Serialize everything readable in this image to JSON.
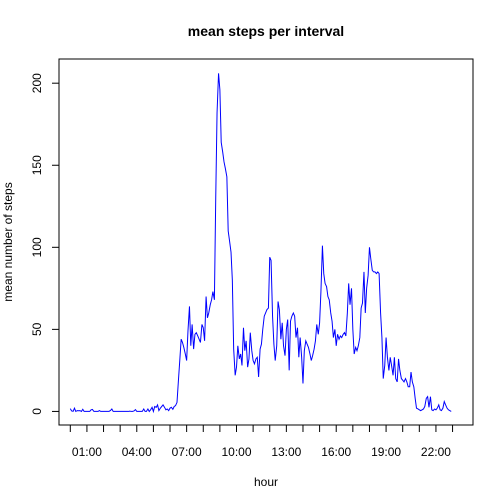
{
  "chart_data": {
    "type": "line",
    "title": "mean steps per interval",
    "xlabel": "hour",
    "ylabel": "mean number of steps",
    "xlim": [
      -0.68,
      24.23
    ],
    "ylim": [
      -8.27,
      214.74
    ],
    "grid": false,
    "x_major_ticks": [
      1,
      4,
      7,
      10,
      13,
      16,
      19,
      22
    ],
    "x_major_tick_labels": [
      "01:00",
      "04:00",
      "07:00",
      "10:00",
      "13:00",
      "16:00",
      "19:00",
      "22:00"
    ],
    "x_minor_ticks": [
      0,
      2,
      3,
      5,
      6,
      8,
      9,
      11,
      12,
      14,
      15,
      17,
      18,
      20,
      21,
      23
    ],
    "y_ticks": [
      0,
      50,
      100,
      150,
      200
    ],
    "y_tick_labels": [
      "0",
      "50",
      "100",
      "150",
      "200"
    ],
    "series": [
      {
        "color": "#0000ff",
        "points": [
          [
            0.0,
            1.7
          ],
          [
            0.08,
            0.3
          ],
          [
            0.17,
            0.1
          ],
          [
            0.25,
            2.0
          ],
          [
            0.33,
            0.0
          ],
          [
            0.42,
            0.5
          ],
          [
            0.5,
            0.4
          ],
          [
            0.58,
            0.5
          ],
          [
            0.67,
            0.0
          ],
          [
            0.75,
            1.3
          ],
          [
            0.83,
            0.0
          ],
          [
            0.92,
            0.0
          ],
          [
            1.0,
            0.0
          ],
          [
            1.08,
            0.0
          ],
          [
            1.17,
            0.0
          ],
          [
            1.25,
            1.0
          ],
          [
            1.33,
            1.2
          ],
          [
            1.42,
            0.0
          ],
          [
            1.5,
            0.0
          ],
          [
            1.58,
            0.0
          ],
          [
            1.67,
            0.0
          ],
          [
            1.75,
            0.5
          ],
          [
            1.83,
            0.0
          ],
          [
            1.92,
            0.0
          ],
          [
            2.0,
            0.0
          ],
          [
            2.08,
            0.0
          ],
          [
            2.17,
            0.0
          ],
          [
            2.25,
            0.0
          ],
          [
            2.33,
            0.0
          ],
          [
            2.42,
            0.6
          ],
          [
            2.5,
            1.5
          ],
          [
            2.58,
            0.0
          ],
          [
            2.67,
            0.0
          ],
          [
            2.75,
            0.0
          ],
          [
            2.83,
            0.0
          ],
          [
            2.92,
            0.0
          ],
          [
            3.0,
            0.0
          ],
          [
            3.08,
            0.0
          ],
          [
            3.17,
            0.0
          ],
          [
            3.25,
            0.0
          ],
          [
            3.33,
            0.0
          ],
          [
            3.42,
            0.0
          ],
          [
            3.5,
            0.0
          ],
          [
            3.58,
            0.2
          ],
          [
            3.67,
            0.0
          ],
          [
            3.75,
            0.0
          ],
          [
            3.83,
            0.3
          ],
          [
            3.92,
            1.1
          ],
          [
            4.0,
            0.0
          ],
          [
            4.08,
            0.0
          ],
          [
            4.17,
            0.0
          ],
          [
            4.25,
            0.0
          ],
          [
            4.33,
            0.0
          ],
          [
            4.42,
            1.5
          ],
          [
            4.5,
            0.0
          ],
          [
            4.58,
            0.0
          ],
          [
            4.67,
            1.5
          ],
          [
            4.75,
            0.0
          ],
          [
            4.83,
            1.0
          ],
          [
            4.92,
            2.5
          ],
          [
            5.0,
            0.0
          ],
          [
            5.08,
            3.0
          ],
          [
            5.17,
            2.5
          ],
          [
            5.25,
            4.0
          ],
          [
            5.33,
            0.5
          ],
          [
            5.42,
            2.0
          ],
          [
            5.5,
            3.0
          ],
          [
            5.58,
            4.0
          ],
          [
            5.67,
            2.5
          ],
          [
            5.75,
            1.0
          ],
          [
            5.83,
            1.5
          ],
          [
            5.92,
            0.5
          ],
          [
            6.0,
            2.0
          ],
          [
            6.08,
            2.5
          ],
          [
            6.17,
            1.3
          ],
          [
            6.25,
            3.0
          ],
          [
            6.33,
            3.5
          ],
          [
            6.42,
            5.5
          ],
          [
            6.5,
            18.0
          ],
          [
            6.58,
            30.0
          ],
          [
            6.67,
            44.0
          ],
          [
            6.75,
            42.0
          ],
          [
            6.83,
            39.0
          ],
          [
            6.92,
            35.0
          ],
          [
            7.0,
            31.0
          ],
          [
            7.08,
            49.0
          ],
          [
            7.17,
            64.0
          ],
          [
            7.25,
            40.0
          ],
          [
            7.33,
            53.0
          ],
          [
            7.42,
            38.0
          ],
          [
            7.5,
            47.0
          ],
          [
            7.58,
            48.0
          ],
          [
            7.67,
            46.0
          ],
          [
            7.75,
            44.0
          ],
          [
            7.83,
            42.0
          ],
          [
            7.92,
            53.0
          ],
          [
            8.0,
            51.0
          ],
          [
            8.08,
            43.0
          ],
          [
            8.17,
            70.0
          ],
          [
            8.25,
            57.0
          ],
          [
            8.33,
            60.0
          ],
          [
            8.42,
            65.0
          ],
          [
            8.5,
            68.0
          ],
          [
            8.58,
            73.0
          ],
          [
            8.67,
            68.0
          ],
          [
            8.75,
            130.0
          ],
          [
            8.83,
            182.0
          ],
          [
            8.92,
            206.0
          ],
          [
            9.0,
            196.0
          ],
          [
            9.08,
            164.0
          ],
          [
            9.17,
            158.0
          ],
          [
            9.25,
            152.0
          ],
          [
            9.33,
            148.0
          ],
          [
            9.42,
            143.0
          ],
          [
            9.5,
            110.0
          ],
          [
            9.58,
            104.0
          ],
          [
            9.67,
            97.0
          ],
          [
            9.75,
            80.0
          ],
          [
            9.83,
            38.0
          ],
          [
            9.92,
            22.0
          ],
          [
            10.0,
            27.0
          ],
          [
            10.08,
            40.0
          ],
          [
            10.17,
            32.0
          ],
          [
            10.25,
            35.0
          ],
          [
            10.33,
            28.0
          ],
          [
            10.42,
            51.0
          ],
          [
            10.5,
            37.0
          ],
          [
            10.58,
            43.0
          ],
          [
            10.67,
            27.0
          ],
          [
            10.75,
            32.0
          ],
          [
            10.83,
            48.0
          ],
          [
            10.92,
            37.0
          ],
          [
            11.0,
            31.0
          ],
          [
            11.08,
            29.0
          ],
          [
            11.17,
            32.0
          ],
          [
            11.25,
            33.0
          ],
          [
            11.33,
            21.0
          ],
          [
            11.42,
            38.0
          ],
          [
            11.5,
            41.0
          ],
          [
            11.58,
            50.0
          ],
          [
            11.67,
            58.0
          ],
          [
            11.75,
            60.0
          ],
          [
            11.83,
            62.0
          ],
          [
            11.92,
            63.0
          ],
          [
            12.0,
            94.0
          ],
          [
            12.08,
            92.0
          ],
          [
            12.17,
            58.0
          ],
          [
            12.25,
            41.0
          ],
          [
            12.33,
            31.0
          ],
          [
            12.42,
            40.0
          ],
          [
            12.5,
            67.0
          ],
          [
            12.58,
            62.0
          ],
          [
            12.67,
            44.0
          ],
          [
            12.75,
            54.0
          ],
          [
            12.83,
            40.0
          ],
          [
            12.92,
            34.0
          ],
          [
            13.0,
            50.0
          ],
          [
            13.08,
            56.0
          ],
          [
            13.17,
            25.0
          ],
          [
            13.25,
            55.0
          ],
          [
            13.33,
            58.0
          ],
          [
            13.42,
            60.0
          ],
          [
            13.5,
            58.0
          ],
          [
            13.58,
            45.0
          ],
          [
            13.67,
            51.0
          ],
          [
            13.75,
            33.0
          ],
          [
            13.83,
            45.0
          ],
          [
            13.92,
            33.0
          ],
          [
            14.0,
            17.0
          ],
          [
            14.08,
            37.0
          ],
          [
            14.17,
            43.0
          ],
          [
            14.25,
            41.0
          ],
          [
            14.33,
            39.0
          ],
          [
            14.42,
            35.0
          ],
          [
            14.5,
            31.0
          ],
          [
            14.58,
            34.0
          ],
          [
            14.67,
            38.0
          ],
          [
            14.75,
            43.0
          ],
          [
            14.83,
            53.0
          ],
          [
            14.92,
            47.0
          ],
          [
            15.0,
            54.0
          ],
          [
            15.08,
            73.0
          ],
          [
            15.17,
            101.0
          ],
          [
            15.25,
            84.0
          ],
          [
            15.33,
            78.0
          ],
          [
            15.42,
            76.0
          ],
          [
            15.5,
            70.0
          ],
          [
            15.58,
            68.0
          ],
          [
            15.67,
            60.0
          ],
          [
            15.75,
            55.0
          ],
          [
            15.83,
            45.0
          ],
          [
            15.92,
            50.0
          ],
          [
            16.0,
            40.0
          ],
          [
            16.08,
            47.0
          ],
          [
            16.17,
            44.0
          ],
          [
            16.25,
            46.0
          ],
          [
            16.33,
            45.0
          ],
          [
            16.42,
            47.0
          ],
          [
            16.5,
            48.0
          ],
          [
            16.58,
            46.0
          ],
          [
            16.67,
            60.0
          ],
          [
            16.75,
            78.0
          ],
          [
            16.83,
            65.0
          ],
          [
            16.92,
            75.0
          ],
          [
            17.0,
            50.0
          ],
          [
            17.08,
            35.0
          ],
          [
            17.17,
            39.0
          ],
          [
            17.25,
            37.0
          ],
          [
            17.33,
            40.0
          ],
          [
            17.42,
            45.0
          ],
          [
            17.5,
            63.0
          ],
          [
            17.58,
            66.0
          ],
          [
            17.67,
            85.0
          ],
          [
            17.75,
            60.0
          ],
          [
            17.83,
            75.0
          ],
          [
            17.92,
            83.0
          ],
          [
            18.0,
            100.0
          ],
          [
            18.08,
            93.0
          ],
          [
            18.17,
            86.0
          ],
          [
            18.25,
            85.0
          ],
          [
            18.33,
            85.0
          ],
          [
            18.42,
            84.0
          ],
          [
            18.5,
            85.0
          ],
          [
            18.58,
            84.0
          ],
          [
            18.67,
            60.0
          ],
          [
            18.75,
            45.0
          ],
          [
            18.83,
            20.0
          ],
          [
            18.92,
            28.0
          ],
          [
            19.0,
            45.0
          ],
          [
            19.08,
            33.0
          ],
          [
            19.17,
            25.0
          ],
          [
            19.25,
            33.0
          ],
          [
            19.33,
            28.0
          ],
          [
            19.42,
            22.0
          ],
          [
            19.5,
            33.0
          ],
          [
            19.58,
            20.0
          ],
          [
            19.67,
            18.0
          ],
          [
            19.75,
            32.0
          ],
          [
            19.83,
            25.0
          ],
          [
            19.92,
            20.0
          ],
          [
            20.0,
            19.0
          ],
          [
            20.08,
            18.0
          ],
          [
            20.17,
            20.0
          ],
          [
            20.25,
            18.0
          ],
          [
            20.33,
            15.0
          ],
          [
            20.42,
            15.0
          ],
          [
            20.5,
            24.0
          ],
          [
            20.58,
            18.0
          ],
          [
            20.67,
            15.0
          ],
          [
            20.75,
            8.0
          ],
          [
            20.83,
            2.0
          ],
          [
            20.92,
            1.5
          ],
          [
            21.0,
            1.0
          ],
          [
            21.08,
            0.5
          ],
          [
            21.17,
            1.0
          ],
          [
            21.25,
            1.5
          ],
          [
            21.33,
            3.0
          ],
          [
            21.42,
            8.0
          ],
          [
            21.5,
            9.0
          ],
          [
            21.58,
            2.5
          ],
          [
            21.67,
            9.0
          ],
          [
            21.75,
            1.0
          ],
          [
            21.83,
            0.5
          ],
          [
            21.92,
            1.5
          ],
          [
            22.0,
            1.0
          ],
          [
            22.08,
            2.0
          ],
          [
            22.17,
            4.0
          ],
          [
            22.25,
            1.0
          ],
          [
            22.33,
            0.5
          ],
          [
            22.42,
            2.0
          ],
          [
            22.5,
            6.0
          ],
          [
            22.58,
            4.0
          ],
          [
            22.67,
            2.0
          ],
          [
            22.75,
            1.0
          ],
          [
            22.83,
            0.5
          ],
          [
            22.92,
            0.0
          ]
        ]
      }
    ]
  }
}
